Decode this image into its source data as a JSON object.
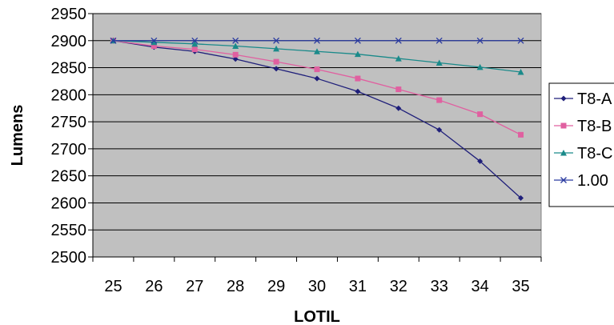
{
  "chart_data": {
    "type": "line",
    "title": "",
    "xlabel": "LOTIL",
    "ylabel": "Lumens",
    "x": [
      25,
      26,
      27,
      28,
      29,
      30,
      31,
      32,
      33,
      34,
      35
    ],
    "ylim": [
      2500,
      2950
    ],
    "yticks": [
      2500,
      2550,
      2600,
      2650,
      2700,
      2750,
      2800,
      2850,
      2900,
      2950
    ],
    "grid": true,
    "legend_position": "right",
    "series": [
      {
        "name": "T8-A",
        "marker": "diamond",
        "color": "#1f1f7a",
        "values": [
          2900,
          2888,
          2880,
          2866,
          2848,
          2830,
          2806,
          2775,
          2735,
          2677,
          2609
        ]
      },
      {
        "name": "T8-B",
        "marker": "square",
        "color": "#e060a0",
        "values": [
          2900,
          2890,
          2884,
          2874,
          2861,
          2847,
          2830,
          2810,
          2790,
          2764,
          2726
        ]
      },
      {
        "name": "T8-C",
        "marker": "triangle",
        "color": "#1a8a8a",
        "values": [
          2900,
          2897,
          2894,
          2890,
          2885,
          2880,
          2875,
          2867,
          2859,
          2851,
          2842
        ]
      },
      {
        "name": "1.00",
        "marker": "x",
        "color": "#2a3aa0",
        "values": [
          2900,
          2900,
          2900,
          2900,
          2900,
          2900,
          2900,
          2900,
          2900,
          2900,
          2900
        ]
      }
    ],
    "plot_background": "#c0c0c0"
  }
}
